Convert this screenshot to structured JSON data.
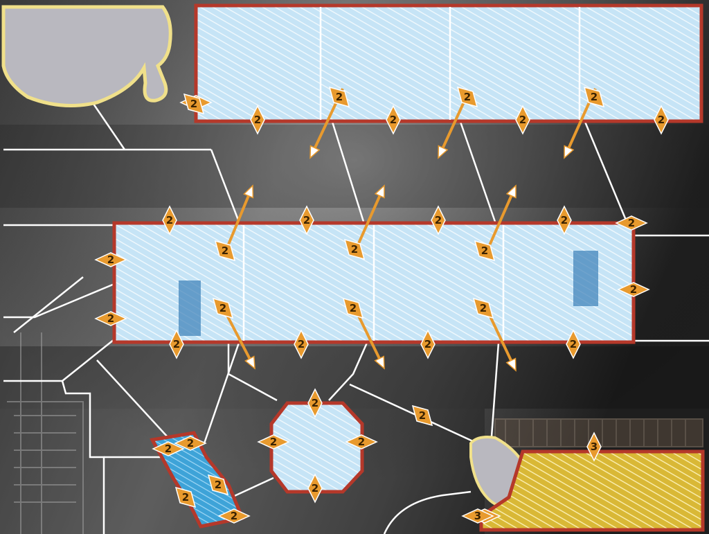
{
  "map": {
    "name": "",
    "colors": {
      "ground_dark": "#262626",
      "ground_light": "#8a8a8a",
      "water_blue": "#bfe0f4",
      "water_deep": "#3aa0d6",
      "hazard_yellow": "#f2d33a",
      "outline_red": "#b5382a",
      "outline_yellow": "#f0e08a",
      "rock_grey": "#b9b8bf",
      "marker_orange": "#e89a2e",
      "path_white": "#ffffff"
    },
    "zones": [
      {
        "id": "top-pool",
        "kind": "water"
      },
      {
        "id": "middle-pool",
        "kind": "water"
      },
      {
        "id": "round-pool",
        "kind": "water"
      },
      {
        "id": "small-channel",
        "kind": "deep-water"
      },
      {
        "id": "hazard-yard",
        "kind": "hazard"
      },
      {
        "id": "boulder-top-left",
        "kind": "rock"
      },
      {
        "id": "boulder-bottom",
        "kind": "rock"
      }
    ],
    "markers": [
      {
        "label": "2"
      },
      {
        "label": "2"
      },
      {
        "label": "2"
      },
      {
        "label": "2"
      },
      {
        "label": "2"
      },
      {
        "label": "2"
      },
      {
        "label": "2"
      },
      {
        "label": "2"
      },
      {
        "label": "2"
      },
      {
        "label": "2"
      },
      {
        "label": "2"
      },
      {
        "label": "2"
      },
      {
        "label": "2"
      },
      {
        "label": "2"
      },
      {
        "label": "2"
      },
      {
        "label": "2"
      },
      {
        "label": "2"
      },
      {
        "label": "2"
      },
      {
        "label": "2"
      },
      {
        "label": "2"
      },
      {
        "label": "2"
      },
      {
        "label": "2"
      },
      {
        "label": "2"
      },
      {
        "label": "2"
      },
      {
        "label": "2"
      },
      {
        "label": "2"
      },
      {
        "label": "2"
      },
      {
        "label": "2"
      },
      {
        "label": "2"
      },
      {
        "label": "2"
      },
      {
        "label": "2"
      },
      {
        "label": "2"
      },
      {
        "label": "2"
      },
      {
        "label": "2"
      },
      {
        "label": "2"
      },
      {
        "label": "2"
      },
      {
        "label": "2"
      },
      {
        "label": "2"
      },
      {
        "label": "3"
      },
      {
        "label": "3"
      }
    ]
  }
}
